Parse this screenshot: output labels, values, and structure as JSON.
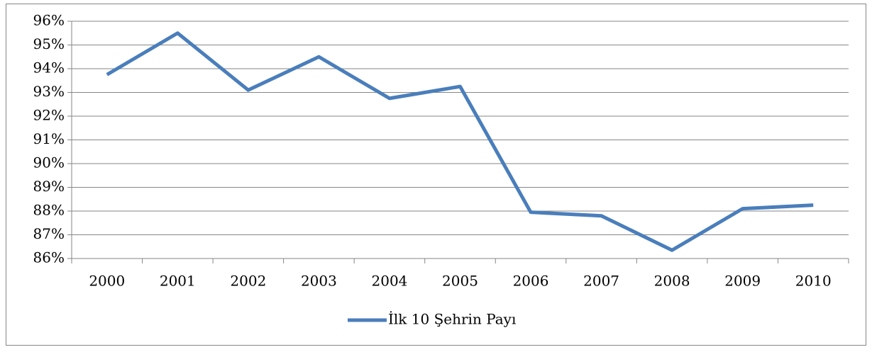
{
  "chart_data": {
    "type": "line",
    "categories": [
      "2000",
      "2001",
      "2002",
      "2003",
      "2004",
      "2005",
      "2006",
      "2007",
      "2008",
      "2009",
      "2010"
    ],
    "series": [
      {
        "name": "İlk 10 Şehrin Payı",
        "color": "#4a7ebb",
        "values": [
          93.75,
          95.5,
          93.1,
          94.5,
          92.75,
          93.25,
          87.95,
          87.8,
          86.35,
          88.1,
          88.25
        ]
      }
    ],
    "ylim": [
      86,
      96
    ],
    "yticks": [
      {
        "value": 86,
        "label": "86%"
      },
      {
        "value": 87,
        "label": "87%"
      },
      {
        "value": 88,
        "label": "88%"
      },
      {
        "value": 89,
        "label": "89%"
      },
      {
        "value": 90,
        "label": "90%"
      },
      {
        "value": 91,
        "label": "91%"
      },
      {
        "value": 92,
        "label": "92%"
      },
      {
        "value": 93,
        "label": "93%"
      },
      {
        "value": 94,
        "label": "94%"
      },
      {
        "value": 95,
        "label": "95%"
      },
      {
        "value": 96,
        "label": "96%"
      }
    ],
    "grid": true,
    "legend": "bottom"
  }
}
